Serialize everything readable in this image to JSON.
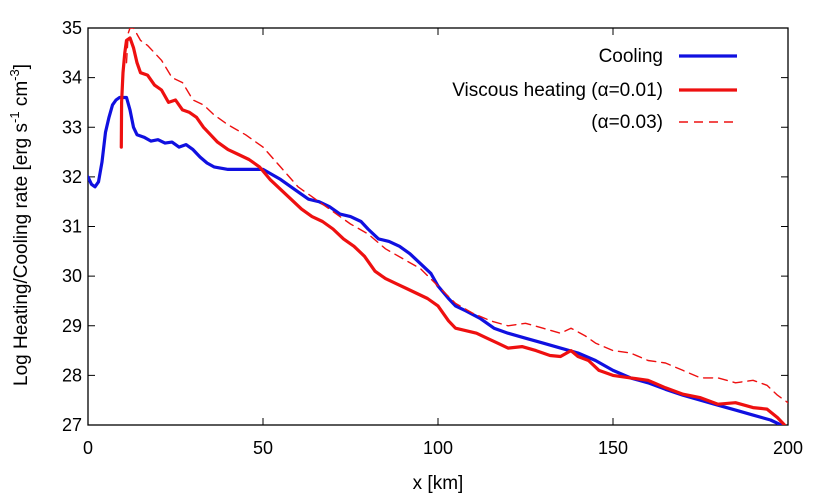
{
  "chart_data": {
    "type": "line",
    "title": "",
    "xlabel": "x [km]",
    "ylabel_parts": [
      "Log Heating/Cooling rate [erg s",
      "-1",
      " cm",
      "-3",
      "]"
    ],
    "xlim": [
      0,
      200
    ],
    "ylim": [
      27,
      35
    ],
    "xticks": [
      "0",
      "50",
      "100",
      "150",
      "200"
    ],
    "yticks": [
      "27",
      "28",
      "29",
      "30",
      "31",
      "32",
      "33",
      "34",
      "35"
    ],
    "grid": false,
    "legend_position": "top-right",
    "series": [
      {
        "name": "Cooling",
        "color": "#1010e0",
        "style": "solid",
        "points": [
          [
            0,
            32.0
          ],
          [
            1,
            31.85
          ],
          [
            2,
            31.8
          ],
          [
            3,
            31.9
          ],
          [
            4,
            32.3
          ],
          [
            5,
            32.9
          ],
          [
            6,
            33.2
          ],
          [
            7,
            33.45
          ],
          [
            8,
            33.55
          ],
          [
            9,
            33.6
          ],
          [
            11,
            33.6
          ],
          [
            12,
            33.35
          ],
          [
            13,
            33.0
          ],
          [
            14,
            32.85
          ],
          [
            16,
            32.8
          ],
          [
            18,
            32.72
          ],
          [
            20,
            32.75
          ],
          [
            22,
            32.68
          ],
          [
            24,
            32.7
          ],
          [
            26,
            32.6
          ],
          [
            28,
            32.65
          ],
          [
            30,
            32.55
          ],
          [
            32,
            32.4
          ],
          [
            34,
            32.28
          ],
          [
            36,
            32.2
          ],
          [
            40,
            32.15
          ],
          [
            45,
            32.15
          ],
          [
            50,
            32.15
          ],
          [
            55,
            31.95
          ],
          [
            60,
            31.7
          ],
          [
            63,
            31.55
          ],
          [
            66,
            31.5
          ],
          [
            69,
            31.4
          ],
          [
            72,
            31.25
          ],
          [
            75,
            31.2
          ],
          [
            78,
            31.1
          ],
          [
            80,
            30.95
          ],
          [
            83,
            30.75
          ],
          [
            86,
            30.7
          ],
          [
            89,
            30.6
          ],
          [
            92,
            30.45
          ],
          [
            95,
            30.25
          ],
          [
            98,
            30.05
          ],
          [
            100,
            29.8
          ],
          [
            103,
            29.55
          ],
          [
            105,
            29.4
          ],
          [
            108,
            29.3
          ],
          [
            112,
            29.15
          ],
          [
            116,
            28.95
          ],
          [
            120,
            28.85
          ],
          [
            125,
            28.75
          ],
          [
            130,
            28.65
          ],
          [
            135,
            28.55
          ],
          [
            140,
            28.45
          ],
          [
            145,
            28.3
          ],
          [
            150,
            28.1
          ],
          [
            155,
            27.95
          ],
          [
            160,
            27.85
          ],
          [
            165,
            27.72
          ],
          [
            170,
            27.6
          ],
          [
            175,
            27.5
          ],
          [
            180,
            27.4
          ],
          [
            185,
            27.3
          ],
          [
            190,
            27.2
          ],
          [
            195,
            27.1
          ],
          [
            198,
            27.0
          ]
        ]
      },
      {
        "name": "Viscous heating (α=0.01)",
        "color": "#ee1010",
        "style": "solid",
        "points": [
          [
            9.5,
            32.6
          ],
          [
            9.6,
            33.5
          ],
          [
            10,
            34.1
          ],
          [
            10.5,
            34.5
          ],
          [
            11,
            34.75
          ],
          [
            12,
            34.8
          ],
          [
            13,
            34.6
          ],
          [
            14,
            34.3
          ],
          [
            15,
            34.1
          ],
          [
            17,
            34.05
          ],
          [
            19,
            33.85
          ],
          [
            21,
            33.75
          ],
          [
            23,
            33.5
          ],
          [
            25,
            33.55
          ],
          [
            27,
            33.35
          ],
          [
            29,
            33.3
          ],
          [
            31,
            33.2
          ],
          [
            33,
            33.0
          ],
          [
            35,
            32.85
          ],
          [
            37,
            32.7
          ],
          [
            40,
            32.55
          ],
          [
            43,
            32.45
          ],
          [
            46,
            32.35
          ],
          [
            49,
            32.2
          ],
          [
            52,
            31.95
          ],
          [
            55,
            31.75
          ],
          [
            58,
            31.55
          ],
          [
            61,
            31.35
          ],
          [
            64,
            31.2
          ],
          [
            67,
            31.1
          ],
          [
            70,
            30.95
          ],
          [
            73,
            30.75
          ],
          [
            76,
            30.6
          ],
          [
            79,
            30.4
          ],
          [
            82,
            30.1
          ],
          [
            85,
            29.95
          ],
          [
            88,
            29.85
          ],
          [
            91,
            29.75
          ],
          [
            94,
            29.65
          ],
          [
            97,
            29.55
          ],
          [
            100,
            29.4
          ],
          [
            103,
            29.1
          ],
          [
            105,
            28.95
          ],
          [
            108,
            28.9
          ],
          [
            111,
            28.85
          ],
          [
            114,
            28.75
          ],
          [
            117,
            28.65
          ],
          [
            120,
            28.55
          ],
          [
            124,
            28.58
          ],
          [
            128,
            28.5
          ],
          [
            132,
            28.4
          ],
          [
            135,
            28.38
          ],
          [
            138,
            28.5
          ],
          [
            140,
            28.38
          ],
          [
            143,
            28.3
          ],
          [
            146,
            28.1
          ],
          [
            150,
            28.0
          ],
          [
            155,
            27.95
          ],
          [
            160,
            27.9
          ],
          [
            165,
            27.75
          ],
          [
            170,
            27.62
          ],
          [
            175,
            27.55
          ],
          [
            180,
            27.42
          ],
          [
            185,
            27.45
          ],
          [
            190,
            27.35
          ],
          [
            194,
            27.32
          ],
          [
            197,
            27.15
          ],
          [
            199,
            27.0
          ]
        ]
      },
      {
        "name": "(α=0.03)",
        "color": "#ee1010",
        "style": "dashed",
        "points": [
          [
            11,
            34.3
          ],
          [
            11.5,
            34.9
          ],
          [
            12,
            35.0
          ],
          [
            13,
            35.0
          ],
          [
            15,
            34.75
          ],
          [
            17,
            34.65
          ],
          [
            19,
            34.5
          ],
          [
            21,
            34.35
          ],
          [
            24,
            34.0
          ],
          [
            27,
            33.9
          ],
          [
            30,
            33.55
          ],
          [
            33,
            33.45
          ],
          [
            36,
            33.25
          ],
          [
            40,
            33.05
          ],
          [
            45,
            32.85
          ],
          [
            50,
            32.6
          ],
          [
            55,
            32.2
          ],
          [
            60,
            31.8
          ],
          [
            65,
            31.55
          ],
          [
            70,
            31.3
          ],
          [
            75,
            31.05
          ],
          [
            80,
            30.85
          ],
          [
            85,
            30.55
          ],
          [
            90,
            30.35
          ],
          [
            95,
            30.15
          ],
          [
            100,
            29.8
          ],
          [
            105,
            29.45
          ],
          [
            110,
            29.25
          ],
          [
            115,
            29.1
          ],
          [
            120,
            29.0
          ],
          [
            125,
            29.05
          ],
          [
            130,
            28.95
          ],
          [
            135,
            28.85
          ],
          [
            138,
            28.95
          ],
          [
            142,
            28.8
          ],
          [
            145,
            28.65
          ],
          [
            150,
            28.5
          ],
          [
            155,
            28.45
          ],
          [
            160,
            28.3
          ],
          [
            165,
            28.25
          ],
          [
            170,
            28.1
          ],
          [
            175,
            27.95
          ],
          [
            180,
            27.95
          ],
          [
            185,
            27.85
          ],
          [
            190,
            27.9
          ],
          [
            194,
            27.8
          ],
          [
            197,
            27.6
          ],
          [
            200,
            27.45
          ]
        ]
      }
    ]
  }
}
